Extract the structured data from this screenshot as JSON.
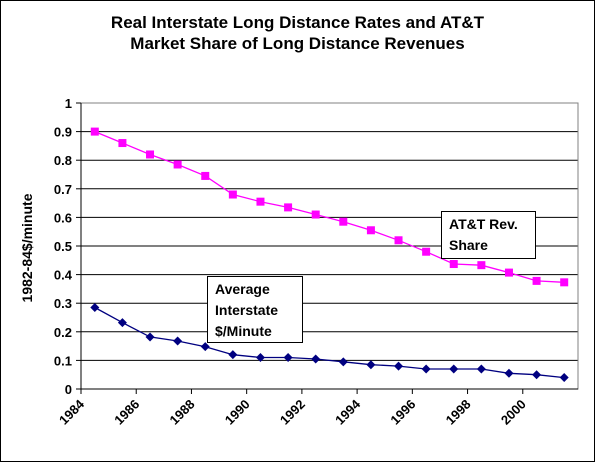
{
  "chart_data": {
    "type": "line",
    "title": [
      "Real Interstate Long Distance Rates and AT&T",
      "Market Share of Long Distance Revenues"
    ],
    "ylabel": "1982-84$/minute",
    "xlabel": "",
    "ylim": [
      0,
      1
    ],
    "yticks": [
      "0",
      "0.1",
      "0.2",
      "0.3",
      "0.4",
      "0.5",
      "0.6",
      "0.7",
      "0.8",
      "0.9",
      "1"
    ],
    "xticks": [
      "1984",
      "1986",
      "1988",
      "1990",
      "1992",
      "1994",
      "1996",
      "1998",
      "2000"
    ],
    "x": [
      1984.5,
      1985.5,
      1986.5,
      1987.5,
      1988.5,
      1989.5,
      1990.5,
      1991.5,
      1992.5,
      1993.5,
      1994.5,
      1995.5,
      1996.5,
      1997.5,
      1998.5,
      1999.5,
      2000.5,
      2001.5
    ],
    "grid": "horizontal",
    "series": [
      {
        "name": "AT&T Rev. Share",
        "label_lines": [
          "AT&T Rev.",
          "Share"
        ],
        "color": "#ff00ff",
        "marker": "square",
        "values": [
          0.9,
          0.86,
          0.82,
          0.785,
          0.745,
          0.68,
          0.655,
          0.635,
          0.61,
          0.585,
          0.555,
          0.52,
          0.48,
          0.437,
          0.433,
          0.407,
          0.378,
          0.373
        ]
      },
      {
        "name": "Average Interstate $/Minute",
        "label_lines": [
          "Average",
          "Interstate",
          "$/Minute"
        ],
        "color": "#000080",
        "marker": "diamond",
        "values": [
          0.285,
          0.232,
          0.182,
          0.168,
          0.148,
          0.12,
          0.11,
          0.11,
          0.105,
          0.095,
          0.085,
          0.08,
          0.07,
          0.07,
          0.07,
          0.055,
          0.05,
          0.04
        ]
      }
    ]
  }
}
